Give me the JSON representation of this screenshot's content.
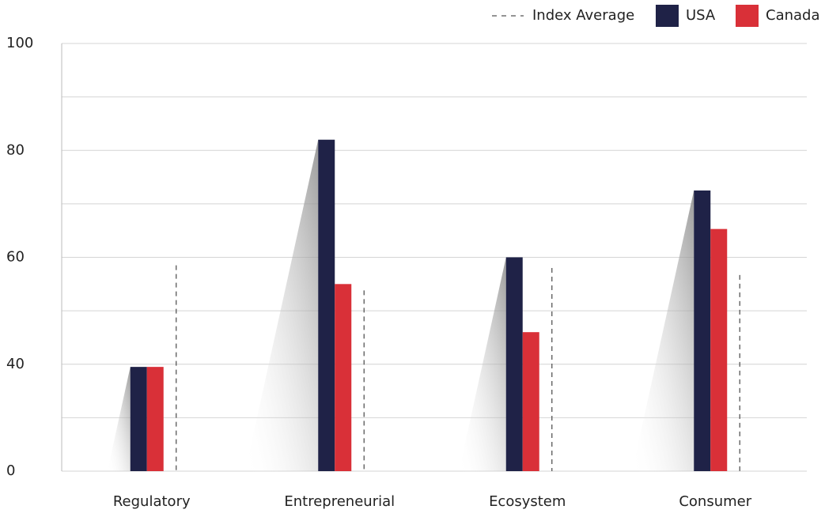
{
  "chart_data": {
    "type": "bar",
    "categories": [
      "Regulatory",
      "Entrepreneurial",
      "Ecosystem",
      "Consumer"
    ],
    "series": [
      {
        "name": "USA",
        "color": "#1f2247",
        "values": [
          39,
          82,
          60,
          72.5
        ]
      },
      {
        "name": "Canada",
        "color": "#d93038",
        "values": [
          39,
          55,
          46,
          65.3
        ]
      },
      {
        "name": "Index Average",
        "color": "#555555",
        "style": "dashed",
        "values": [
          58.5,
          53.8,
          58,
          56.7
        ]
      }
    ],
    "ylim": [
      0,
      100
    ],
    "yticks": [
      0,
      40,
      60,
      80,
      100
    ],
    "grid": true,
    "legend": "top-right"
  }
}
